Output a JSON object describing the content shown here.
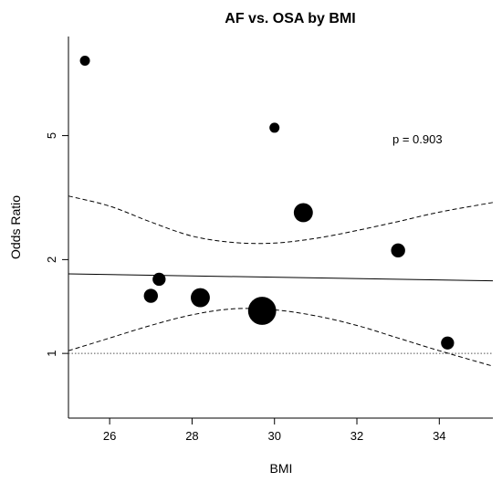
{
  "chart_data": {
    "type": "scatter",
    "title": "AF vs. OSA by BMI",
    "xlabel": "BMI",
    "ylabel": "Odds Ratio",
    "x_ticks": [
      26,
      28,
      30,
      32,
      34
    ],
    "y_ticks": [
      1,
      2,
      5
    ],
    "y_scale": "log",
    "xlim": [
      25.0,
      35.3
    ],
    "ylim": [
      0.62,
      10.4
    ],
    "annotation": "p =  0.903",
    "points": [
      {
        "x": 25.4,
        "y": 8.7,
        "weight": 1.0
      },
      {
        "x": 27.0,
        "y": 1.53,
        "weight": 1.4
      },
      {
        "x": 27.2,
        "y": 1.73,
        "weight": 1.3
      },
      {
        "x": 28.2,
        "y": 1.51,
        "weight": 1.9
      },
      {
        "x": 29.7,
        "y": 1.37,
        "weight": 2.8
      },
      {
        "x": 30.0,
        "y": 5.3,
        "weight": 1.0
      },
      {
        "x": 30.7,
        "y": 2.83,
        "weight": 1.9
      },
      {
        "x": 33.0,
        "y": 2.14,
        "weight": 1.4
      },
      {
        "x": 34.2,
        "y": 1.08,
        "weight": 1.3
      }
    ],
    "fit_line": {
      "x": [
        25.0,
        35.3
      ],
      "y": [
        1.8,
        1.71
      ]
    },
    "ci_upper": {
      "x": [
        25.0,
        26.0,
        27.0,
        28.0,
        29.0,
        30.0,
        31.0,
        32.0,
        33.0,
        34.0,
        35.3
      ],
      "y": [
        3.2,
        2.97,
        2.64,
        2.38,
        2.27,
        2.26,
        2.34,
        2.48,
        2.65,
        2.84,
        3.05
      ]
    },
    "ci_lower": {
      "x": [
        25.0,
        26.0,
        27.0,
        28.0,
        29.0,
        30.0,
        31.0,
        32.0,
        33.0,
        34.0,
        35.3
      ],
      "y": [
        1.02,
        1.12,
        1.23,
        1.33,
        1.39,
        1.38,
        1.32,
        1.23,
        1.12,
        1.02,
        0.91
      ]
    },
    "reference_line": {
      "y": 1
    },
    "grid": false
  }
}
